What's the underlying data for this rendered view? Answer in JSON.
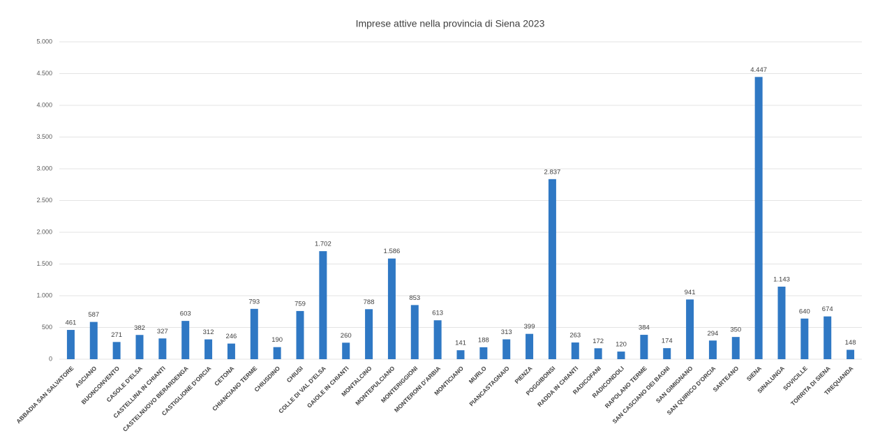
{
  "chart_data": {
    "type": "bar",
    "title": "Imprese attive nella provincia di Siena 2023",
    "categories": [
      "ABBADIA SAN SALVATORE",
      "ASCIANO",
      "BUONCONVENTO",
      "CASOLE D'ELSA",
      "CASTELLINA IN CHIANTI",
      "CASTELNUOVO BERARDENGA",
      "CASTIGLIONE D'ORCIA",
      "CETONA",
      "CHIANCIANO TERME",
      "CHIUSDINO",
      "CHIUSI",
      "COLLE DI VAL D'ELSA",
      "GAIOLE IN CHIANTI",
      "MONTALCINO",
      "MONTEPULCIANO",
      "MONTERIGGIONI",
      "MONTERONI D'ARBIA",
      "MONTICIANO",
      "MURLO",
      "PIANCASTAGNAIO",
      "PIENZA",
      "POGGIBONSI",
      "RADDA IN CHIANTI",
      "RADICOFANI",
      "RADICONDOLI",
      "RAPOLANO TERME",
      "SAN CASCIANO DEI BAGNI",
      "SAN GIMIGNANO",
      "SAN QUIRICO D'ORCIA",
      "SARTEANO",
      "SIENA",
      "SINALUNGA",
      "SOVICILLE",
      "TORRITA DI SIENA",
      "TREQUANDA"
    ],
    "values": [
      461,
      587,
      271,
      382,
      327,
      603,
      312,
      246,
      793,
      190,
      759,
      1702,
      260,
      788,
      1586,
      853,
      613,
      141,
      188,
      313,
      399,
      2837,
      263,
      172,
      120,
      384,
      174,
      941,
      294,
      350,
      4447,
      1143,
      640,
      674,
      148
    ],
    "value_labels": [
      "461",
      "587",
      "271",
      "382",
      "327",
      "603",
      "312",
      "246",
      "793",
      "190",
      "759",
      "1.702",
      "260",
      "788",
      "1.586",
      "853",
      "613",
      "141",
      "188",
      "313",
      "399",
      "2.837",
      "263",
      "172",
      "120",
      "384",
      "174",
      "941",
      "294",
      "350",
      "4.447",
      "1.143",
      "640",
      "674",
      "148"
    ],
    "color": "#2f78c4",
    "ylim": [
      0,
      5000
    ],
    "yticks": [
      0,
      500,
      {
        "value": 1000,
        "label": "1.000"
      },
      {
        "value": 1500,
        "label": "1.500"
      },
      {
        "value": 2000,
        "label": "2.000"
      },
      {
        "value": 2500,
        "label": "2.500"
      },
      {
        "value": 3000,
        "label": "3.000"
      },
      {
        "value": 3500,
        "label": "3.500"
      },
      {
        "value": 4000,
        "label": "4.000"
      },
      {
        "value": 4500,
        "label": "4.500"
      },
      {
        "value": 5000,
        "label": "5.000"
      }
    ],
    "grid": true
  }
}
